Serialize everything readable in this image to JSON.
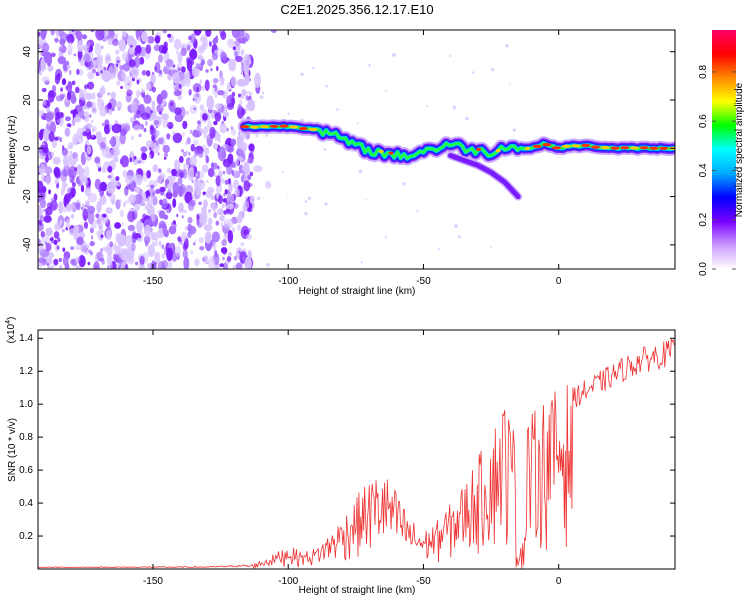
{
  "figure": {
    "title": "C2E1.2025.356.12.17.E10"
  },
  "chart_data": [
    {
      "type": "heatmap",
      "name": "spectrogram",
      "xlabel": "Height of straight line (km)",
      "ylabel": "Frequency (Hz)",
      "xlim": [
        -192.5,
        43
      ],
      "ylim": [
        -50,
        49
      ],
      "xticks": [
        "-150",
        "-100",
        "-50",
        "0"
      ],
      "xtick_values": [
        -150,
        -100,
        -50,
        0
      ],
      "yticks": [
        "40",
        "20",
        "0",
        "-20",
        "-40"
      ],
      "ytick_values": [
        40,
        20,
        0,
        -20,
        -40
      ],
      "colorbar": {
        "label": "Normalized spectral amplitude",
        "range": [
          0,
          0.97
        ],
        "ticks": [
          "0.0",
          "0.2",
          "0.4",
          "0.6",
          "0.8"
        ],
        "tick_values": [
          0.0,
          0.2,
          0.4,
          0.6,
          0.8
        ],
        "colors": [
          "#ffffff",
          "#cc99ff",
          "#7700ff",
          "#0000ff",
          "#00aaff",
          "#00ffff",
          "#00ff00",
          "#ffff00",
          "#ff8800",
          "#ff0000",
          "#ff0066"
        ]
      },
      "noise_region": {
        "x": [
          -192.5,
          -113
        ],
        "y": [
          -50,
          49
        ]
      },
      "signal_ridge": {
        "x": [
          -116,
          -110,
          -100,
          -90,
          -85,
          -80,
          -75,
          -70,
          -65,
          -60,
          -55,
          -50,
          -45,
          -40,
          -35,
          -30,
          -25,
          -20,
          -15,
          -10,
          -5,
          0,
          5,
          10,
          20,
          30,
          43
        ],
        "y": [
          9,
          9,
          9,
          8,
          6,
          4,
          1,
          -1,
          -2,
          -3,
          -3,
          -1,
          0,
          2,
          0,
          -1,
          -2,
          1,
          0,
          0,
          2,
          0,
          1,
          1,
          0,
          0,
          0
        ]
      },
      "signal_branch": {
        "x": [
          -40,
          -35,
          -30,
          -25,
          -20,
          -15
        ],
        "y": [
          -3,
          -5,
          -7,
          -10,
          -14,
          -20
        ]
      }
    },
    {
      "type": "line",
      "name": "snr",
      "xlabel": "Height of straight line (km)",
      "ylabel": "SNR (10 * v/v)",
      "y_multiplier": "(x10",
      "y_multiplier_exp": "4",
      "xlim": [
        -192.5,
        43
      ],
      "ylim": [
        0,
        14500
      ],
      "xticks": [
        "-150",
        "-100",
        "-50",
        "0"
      ],
      "xtick_values": [
        -150,
        -100,
        -50,
        0
      ],
      "yticks": [
        "0.2",
        "0.4",
        "0.6",
        "0.8",
        "1.0",
        "1.2",
        "1.4"
      ],
      "ytick_values": [
        2000,
        4000,
        6000,
        8000,
        10000,
        12000,
        14000
      ],
      "color": "#ee3333",
      "envelope": {
        "x": [
          -192.5,
          -130,
          -115,
          -110,
          -105,
          -100,
          -95,
          -90,
          -85,
          -80,
          -75,
          -70,
          -65,
          -60,
          -55,
          -50,
          -45,
          -40,
          -35,
          -30,
          -25,
          -20,
          -15,
          -10,
          -5,
          0,
          5,
          10,
          15,
          20,
          25,
          30,
          35,
          40,
          43
        ],
        "y": [
          100,
          120,
          200,
          500,
          900,
          1400,
          1000,
          1200,
          2000,
          3000,
          4200,
          5200,
          5800,
          4500,
          3000,
          2200,
          2800,
          3800,
          5000,
          6500,
          8000,
          10000,
          7500,
          9000,
          10000,
          10500,
          11000,
          11500,
          12000,
          12500,
          13000,
          13400,
          13700,
          13900,
          14000
        ]
      }
    }
  ]
}
